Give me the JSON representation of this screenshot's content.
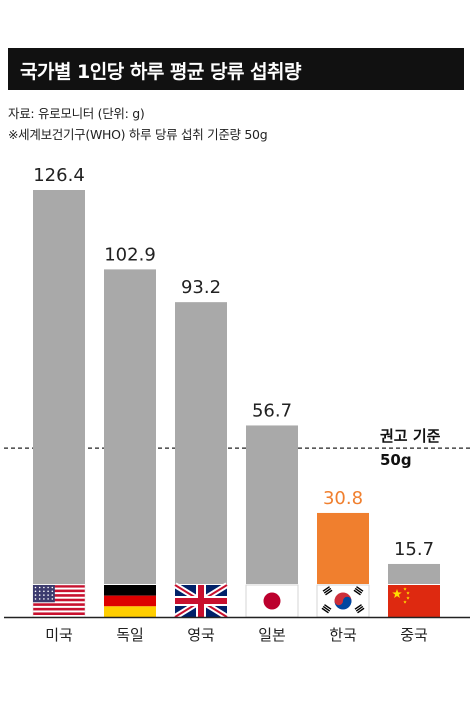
{
  "title": "국가별 1인당 하루 평균 당류 섭취량",
  "source": "자료: 유로모니터 (단위: g)",
  "note": "※세계보건기구(WHO) 하루 당류 섭취 기준량 50g",
  "reference": {
    "line1": "권고 기준",
    "line2": "50g",
    "value": 50
  },
  "colors": {
    "bar": "#a9a9a9",
    "highlight": "#f07f2e",
    "title_bg": "#111111"
  },
  "chart_data": {
    "type": "bar",
    "categories": [
      "미국",
      "독일",
      "영국",
      "일본",
      "한국",
      "중국"
    ],
    "values": [
      126.4,
      102.9,
      93.2,
      56.7,
      30.8,
      15.7
    ],
    "value_labels": [
      "126.4",
      "102.9",
      "93.2",
      "56.7",
      "30.8",
      "15.7"
    ],
    "highlight_index": 4,
    "flag_icons": [
      "usa-flag-icon",
      "germany-flag-icon",
      "uk-flag-icon",
      "japan-flag-icon",
      "korea-flag-icon",
      "china-flag-icon"
    ],
    "title": "국가별 1인당 하루 평균 당류 섭취량",
    "ylim": [
      0,
      130
    ],
    "grid": false,
    "unit": "g"
  }
}
